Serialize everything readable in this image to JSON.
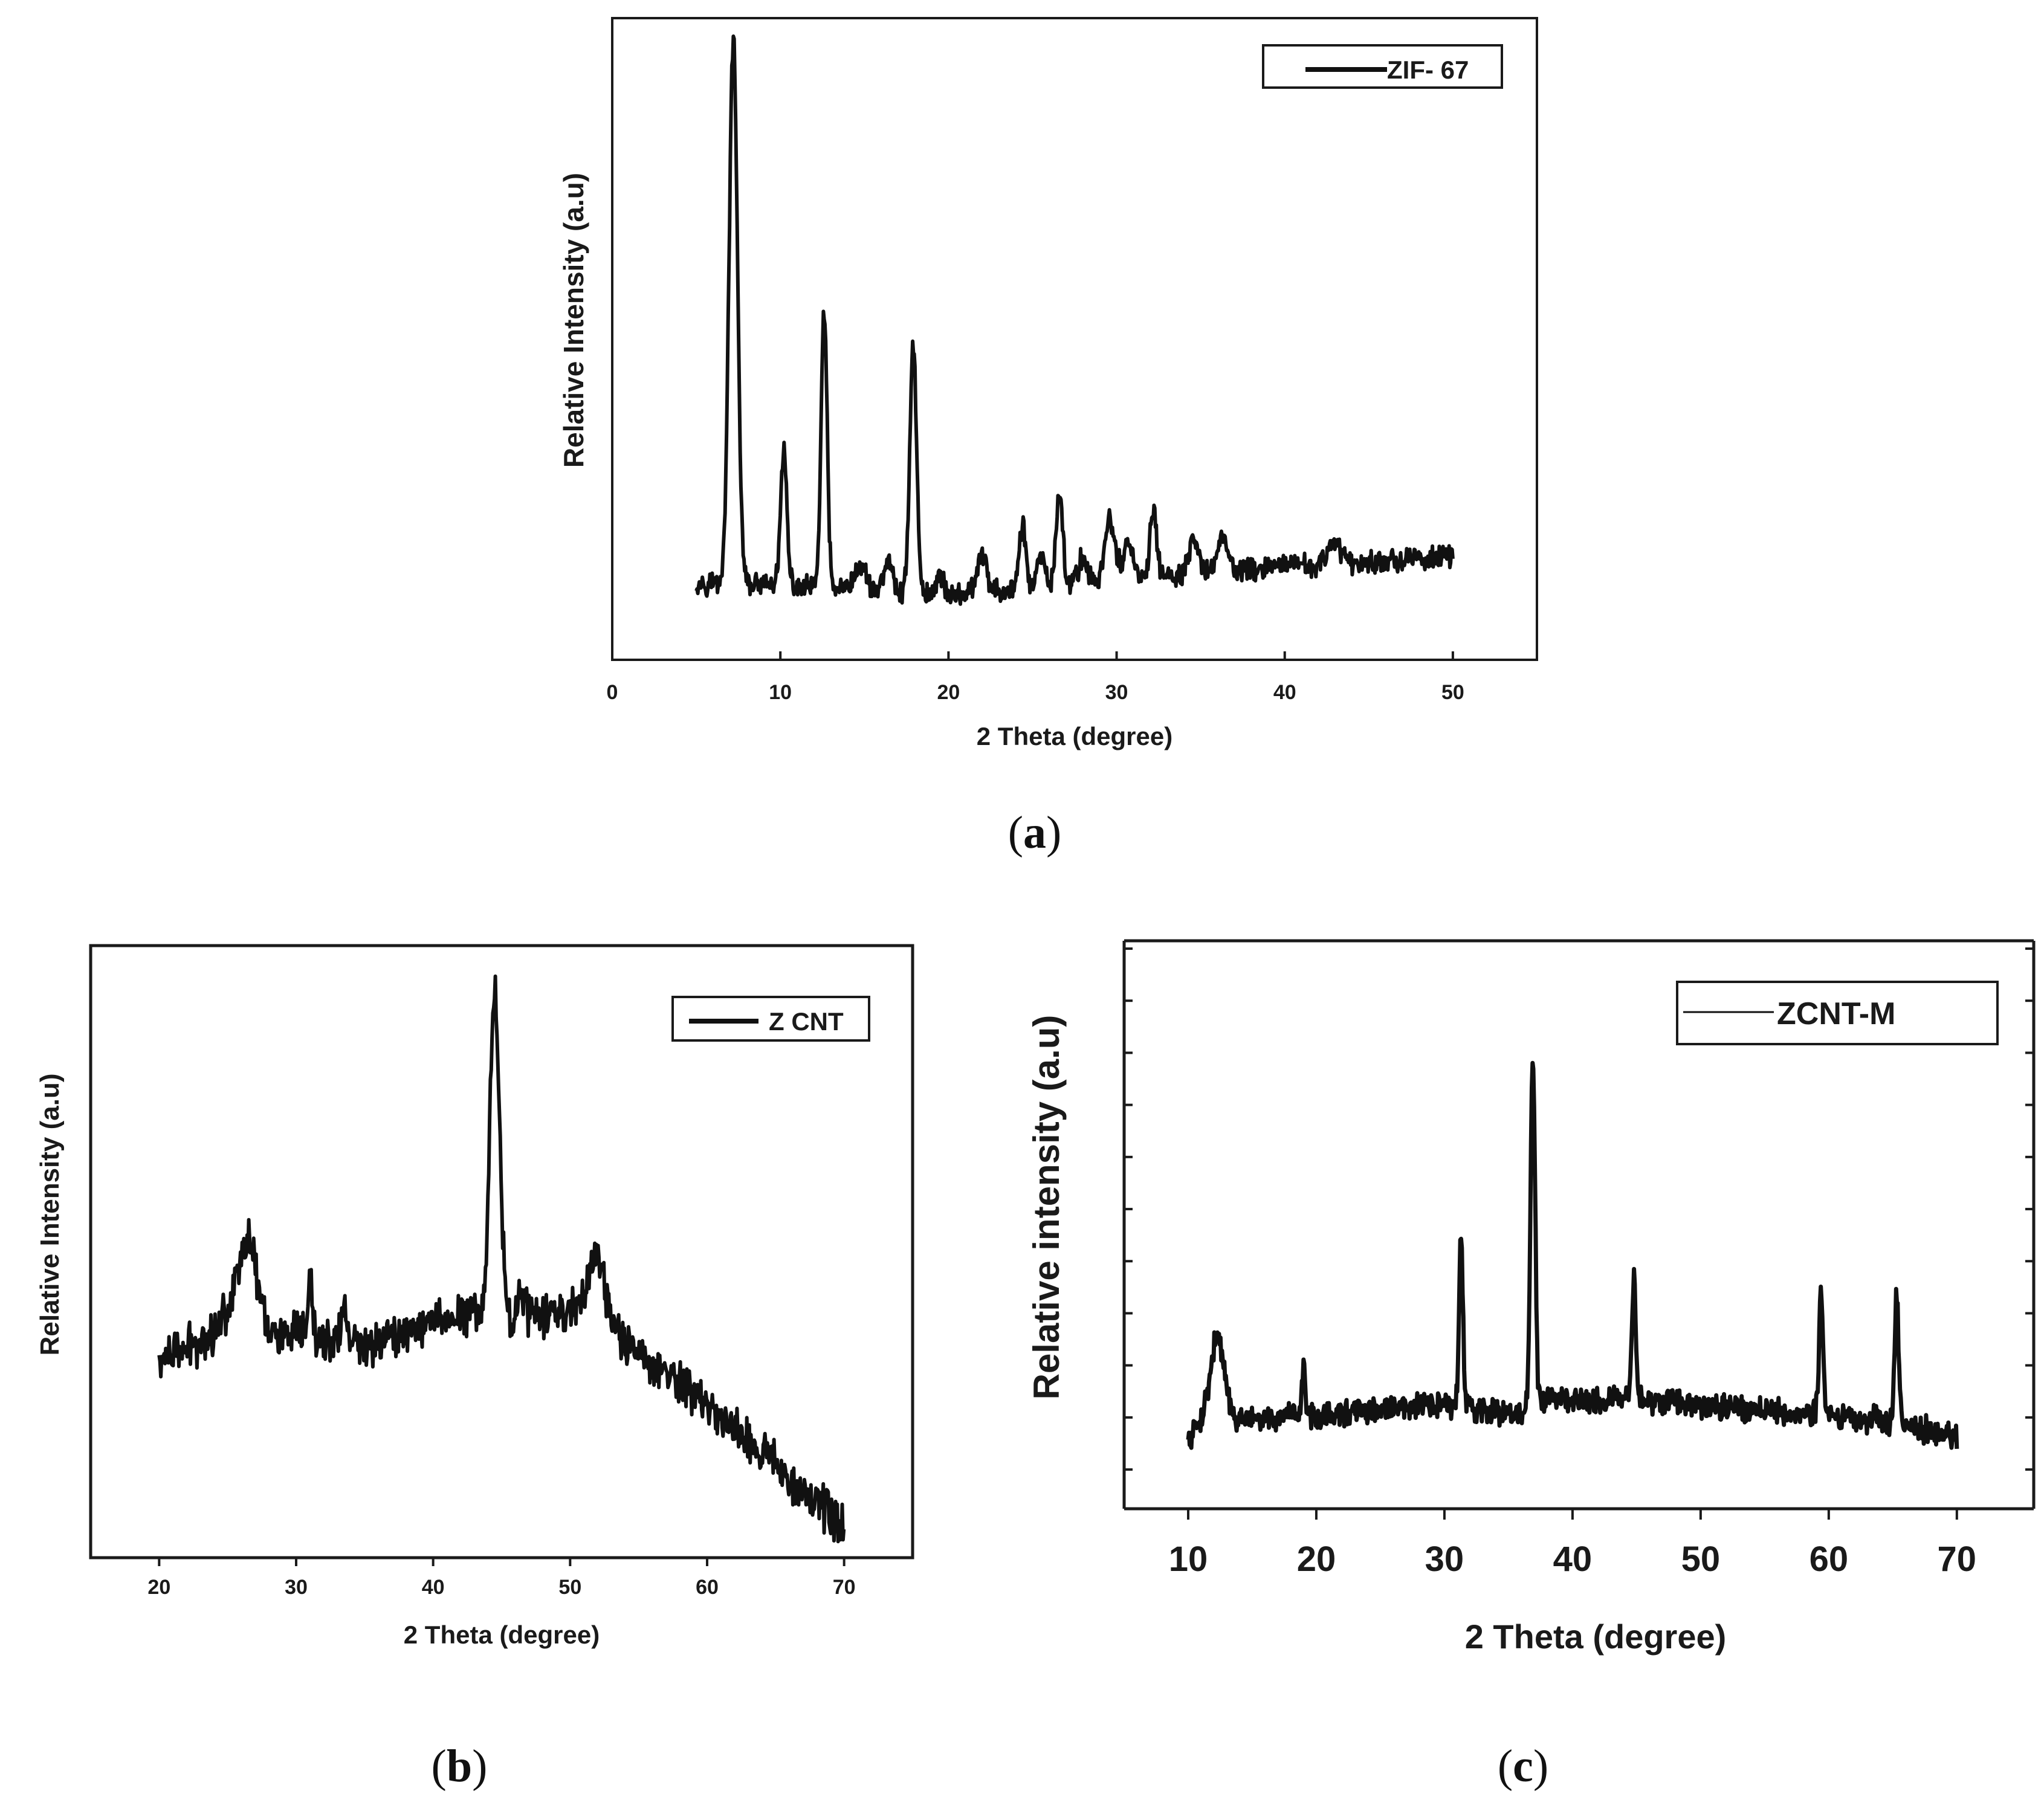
{
  "figure": {
    "captions": {
      "a": {
        "open": "(",
        "letter": "a",
        "close": ")"
      },
      "b": {
        "open": "(",
        "letter": "b",
        "close": ")"
      },
      "c": {
        "open": "(",
        "letter": "c",
        "close": ")"
      }
    }
  },
  "chart_data": [
    {
      "id": "a",
      "type": "line",
      "title": "",
      "xlabel": "2 Theta (degree)",
      "ylabel": "Relative Intensity (a.u)",
      "xlim": [
        0,
        55
      ],
      "ylim": [
        0,
        100
      ],
      "xticks": [
        0,
        10,
        20,
        30,
        40,
        50
      ],
      "y_tick_labels": false,
      "grid": false,
      "legend": {
        "position": "top-right",
        "entries": [
          "ZIF- 67"
        ]
      },
      "series": [
        {
          "name": "ZIF- 67",
          "x_range": [
            5,
            50
          ],
          "baseline": [
            [
              5,
              12.5
            ],
            [
              20,
              10.5
            ],
            [
              30,
              12.5
            ],
            [
              40,
              15
            ],
            [
              50,
              16.5
            ]
          ],
          "noise": 1.6,
          "peaks": [
            [
              7.2,
              87,
              0.25
            ],
            [
              10.2,
              22,
              0.18
            ],
            [
              12.6,
              44,
              0.18
            ],
            [
              17.9,
              40,
              0.2
            ],
            [
              14.8,
              4,
              0.3
            ],
            [
              16.4,
              5,
              0.25
            ],
            [
              19.5,
              3,
              0.2
            ],
            [
              22,
              6,
              0.25
            ],
            [
              24.4,
              10,
              0.2
            ],
            [
              25.5,
              5,
              0.2
            ],
            [
              26.6,
              15,
              0.2
            ],
            [
              28,
              4,
              0.3
            ],
            [
              29.6,
              10,
              0.3
            ],
            [
              30.7,
              6,
              0.3
            ],
            [
              32.2,
              11,
              0.2
            ],
            [
              34.6,
              5,
              0.3
            ],
            [
              36.3,
              6,
              0.3
            ],
            [
              43,
              3,
              0.4
            ]
          ]
        }
      ]
    },
    {
      "id": "b",
      "type": "line",
      "title": "",
      "xlabel": "2 Theta (degree)",
      "ylabel": "Relative Intensity (a.u)",
      "xlim": [
        15,
        75
      ],
      "ylim": [
        0,
        100
      ],
      "xticks": [
        20,
        30,
        40,
        50,
        60,
        70
      ],
      "y_tick_labels": false,
      "grid": false,
      "legend": {
        "position": "top-right",
        "entries": [
          "Z CNT"
        ]
      },
      "series": [
        {
          "name": "Z CNT",
          "x_range": [
            20,
            70
          ],
          "baseline": [
            [
              20,
              33
            ],
            [
              24,
              38
            ],
            [
              26,
              47
            ],
            [
              28,
              38
            ],
            [
              35,
              36
            ],
            [
              40,
              40
            ],
            [
              43,
              42
            ],
            [
              47,
              40
            ],
            [
              50,
              42
            ],
            [
              52,
              46
            ],
            [
              54,
              36
            ],
            [
              60,
              26
            ],
            [
              65,
              16
            ],
            [
              70,
              5
            ]
          ],
          "noise": 3.2,
          "peaks": [
            [
              44.5,
              55,
              0.35
            ],
            [
              26.6,
              9,
              0.6
            ],
            [
              31,
              10,
              0.15
            ],
            [
              33.5,
              6,
              0.2
            ],
            [
              46.5,
              5,
              0.3
            ],
            [
              51.8,
              5,
              0.5
            ]
          ]
        }
      ]
    },
    {
      "id": "c",
      "type": "line",
      "title": "",
      "xlabel": "2 Theta (degree)",
      "ylabel": "Relative intensity (a.u)",
      "xlim": [
        5,
        76
      ],
      "ylim": [
        0,
        100
      ],
      "xticks": [
        10,
        20,
        30,
        40,
        50,
        60,
        70
      ],
      "y_tick_labels": false,
      "grid": false,
      "legend": {
        "position": "top-right",
        "entries": [
          "ZCNT-M"
        ]
      },
      "series": [
        {
          "name": "ZCNT-M",
          "x_range": [
            10,
            70
          ],
          "baseline": [
            [
              10,
              12
            ],
            [
              11.5,
              18
            ],
            [
              14,
              16
            ],
            [
              20,
              17
            ],
            [
              30,
              19
            ],
            [
              36,
              17
            ],
            [
              38,
              20
            ],
            [
              45,
              20
            ],
            [
              55,
              18
            ],
            [
              65,
              16
            ],
            [
              70,
              13
            ]
          ],
          "noise": 2.0,
          "peaks": [
            [
              12.3,
              14,
              0.5
            ],
            [
              19,
              10,
              0.12
            ],
            [
              31.3,
              31,
              0.15
            ],
            [
              36.9,
              64,
              0.18
            ],
            [
              44.8,
              22,
              0.15
            ],
            [
              59.4,
              23,
              0.15
            ],
            [
              65.3,
              23,
              0.15
            ]
          ]
        }
      ]
    }
  ]
}
